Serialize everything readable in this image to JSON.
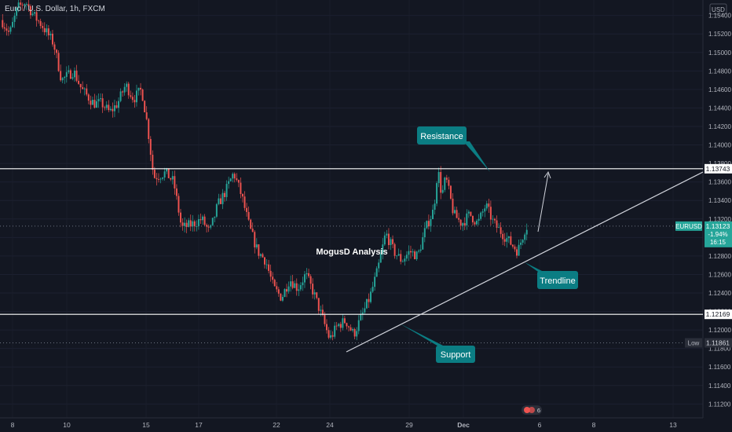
{
  "header": {
    "symbol_title": "Euro / U.S. Dollar, 1h, FXCM"
  },
  "currency_badge": "USD",
  "colors": {
    "background": "#131722",
    "up": "#26a69a",
    "down": "#ef5350",
    "text": "#b2b5be",
    "callout": "#0b7d83",
    "line": "#ffffff"
  },
  "chart_data": {
    "type": "candlestick",
    "title": "MogusD Analysis",
    "y_ticks": [
      1.112,
      1.114,
      1.116,
      1.118,
      1.12,
      1.122,
      1.124,
      1.126,
      1.128,
      1.13,
      1.132,
      1.134,
      1.136,
      1.138,
      1.14,
      1.142,
      1.144,
      1.146,
      1.148,
      1.15,
      1.152,
      1.154
    ],
    "y_tick_labels": [
      "1.11200",
      "1.11400",
      "1.11600",
      "1.11800",
      "1.12000",
      "1.12200",
      "1.12400",
      "1.12600",
      "1.12800",
      "1.13000",
      "1.13200",
      "1.13400",
      "1.13600",
      "1.13800",
      "1.14000",
      "1.14200",
      "1.14400",
      "1.14600",
      "1.14800",
      "1.15000",
      "1.15200",
      "1.15400"
    ],
    "x_ticks": [
      "8",
      "10",
      "15",
      "17",
      "22",
      "24",
      "29",
      "Dec",
      "6",
      "8",
      "13"
    ],
    "ylim": [
      1.1105,
      1.1555
    ],
    "series_path": [
      [
        0,
        1.1535
      ],
      [
        4,
        1.152
      ],
      [
        8,
        1.1548
      ],
      [
        12,
        1.1555
      ],
      [
        16,
        1.154
      ],
      [
        20,
        1.153
      ],
      [
        26,
        1.151
      ],
      [
        30,
        1.147
      ],
      [
        36,
        1.148
      ],
      [
        40,
        1.146
      ],
      [
        46,
        1.1445
      ],
      [
        50,
        1.1445
      ],
      [
        54,
        1.1435
      ],
      [
        58,
        1.1445
      ],
      [
        62,
        1.1465
      ],
      [
        66,
        1.145
      ],
      [
        70,
        1.146
      ],
      [
        73,
        1.142
      ],
      [
        76,
        1.1365
      ],
      [
        82,
        1.137
      ],
      [
        86,
        1.136
      ],
      [
        90,
        1.131
      ],
      [
        96,
        1.1315
      ],
      [
        100,
        1.132
      ],
      [
        104,
        1.1305
      ],
      [
        108,
        1.1335
      ],
      [
        112,
        1.135
      ],
      [
        116,
        1.137
      ],
      [
        120,
        1.1345
      ],
      [
        124,
        1.131
      ],
      [
        128,
        1.1285
      ],
      [
        132,
        1.1275
      ],
      [
        136,
        1.1245
      ],
      [
        140,
        1.1235
      ],
      [
        144,
        1.1255
      ],
      [
        148,
        1.1245
      ],
      [
        152,
        1.126
      ],
      [
        156,
        1.124
      ],
      [
        160,
        1.1215
      ],
      [
        164,
        1.119
      ],
      [
        168,
        1.1205
      ],
      [
        172,
        1.121
      ],
      [
        176,
        1.1195
      ],
      [
        180,
        1.1215
      ],
      [
        184,
        1.1235
      ],
      [
        188,
        1.1265
      ],
      [
        192,
        1.1305
      ],
      [
        196,
        1.1285
      ],
      [
        200,
        1.1275
      ],
      [
        204,
        1.1285
      ],
      [
        208,
        1.128
      ],
      [
        212,
        1.131
      ],
      [
        216,
        1.133
      ],
      [
        218,
        1.1375
      ],
      [
        220,
        1.1345
      ],
      [
        222,
        1.1365
      ],
      [
        226,
        1.1325
      ],
      [
        230,
        1.1315
      ],
      [
        234,
        1.1325
      ],
      [
        238,
        1.1315
      ],
      [
        242,
        1.1335
      ],
      [
        246,
        1.1315
      ],
      [
        250,
        1.1305
      ],
      [
        254,
        1.1295
      ],
      [
        258,
        1.1285
      ],
      [
        262,
        1.1312
      ]
    ],
    "horizontal_levels": [
      {
        "value": 1.13743,
        "label": "1.13743"
      },
      {
        "value": 1.12169,
        "label": "1.12169"
      }
    ],
    "current_price": {
      "symbol": "EURUSD",
      "value": "1.13123",
      "change": "-1.94%",
      "countdown": "16:15",
      "level": 1.13123
    },
    "low_marker": {
      "label": "Low",
      "value": "1.11861",
      "level": 1.11861
    },
    "annotations": [
      {
        "text": "Resistance"
      },
      {
        "text": "Trendline"
      },
      {
        "text": "Support"
      }
    ]
  },
  "bottom_badge": {
    "icon": "event-indicator-icon",
    "count": "6"
  }
}
